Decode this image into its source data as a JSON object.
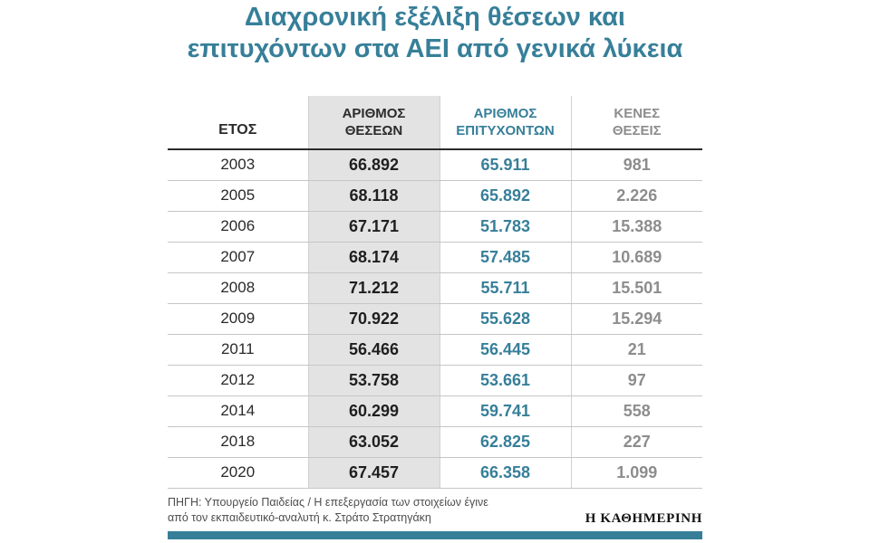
{
  "title": {
    "text": "Διαχρονική εξέλιξη θέσεων και\nεπιτυχόντων στα ΑΕΙ από γενικά λύκεια"
  },
  "chart_data": {
    "type": "table",
    "title": "Διαχρονική εξέλιξη θέσεων και επιτυχόντων στα ΑΕΙ από γενικά λύκεια",
    "columns": [
      "ΕΤΟΣ",
      "ΑΡΙΘΜΟΣ ΘΕΣΕΩΝ",
      "ΑΡΙΘΜΟΣ ΕΠΙΤΥΧΟΝΤΩΝ",
      "ΚΕΝΕΣ ΘΕΣΕΙΣ"
    ],
    "column_display": [
      "ΕΤΟΣ",
      "ΑΡΙΘΜΟΣ\nΘΕΣΕΩΝ",
      "ΑΡΙΘΜΟΣ\nΕΠΙΤΥΧΟΝΤΩΝ",
      "ΚΕΝΕΣ\nΘΕΣΕΙΣ"
    ],
    "rows": [
      [
        "2003",
        "66.892",
        "65.911",
        "981"
      ],
      [
        "2005",
        "68.118",
        "65.892",
        "2.226"
      ],
      [
        "2006",
        "67.171",
        "51.783",
        "15.388"
      ],
      [
        "2007",
        "68.174",
        "57.485",
        "10.689"
      ],
      [
        "2008",
        "71.212",
        "55.711",
        "15.501"
      ],
      [
        "2009",
        "70.922",
        "55.628",
        "15.294"
      ],
      [
        "2011",
        "56.466",
        "56.445",
        "21"
      ],
      [
        "2012",
        "53.758",
        "53.661",
        "97"
      ],
      [
        "2014",
        "60.299",
        "59.741",
        "558"
      ],
      [
        "2018",
        "63.052",
        "62.825",
        "227"
      ],
      [
        "2020",
        "67.457",
        "66.358",
        "1.099"
      ]
    ]
  },
  "source": {
    "text": "ΠΗΓΗ: Υπουργείο Παιδείας / Η επεξεργασία των στοιχείων έγινε\nαπό τον εκπαιδευτικό-αναλυτή κ. Στράτο Στρατηγάκη"
  },
  "branding": {
    "logo": "Η ΚΑΘΗΜΕΡΙΝΗ"
  },
  "colors": {
    "accent_teal": "#377f99",
    "highlight_column_bg": "#e3e3e3",
    "muted_value_gray": "#8d8d8d",
    "header_rule": "#2b2b2b",
    "row_rule": "#c6c6c6"
  }
}
